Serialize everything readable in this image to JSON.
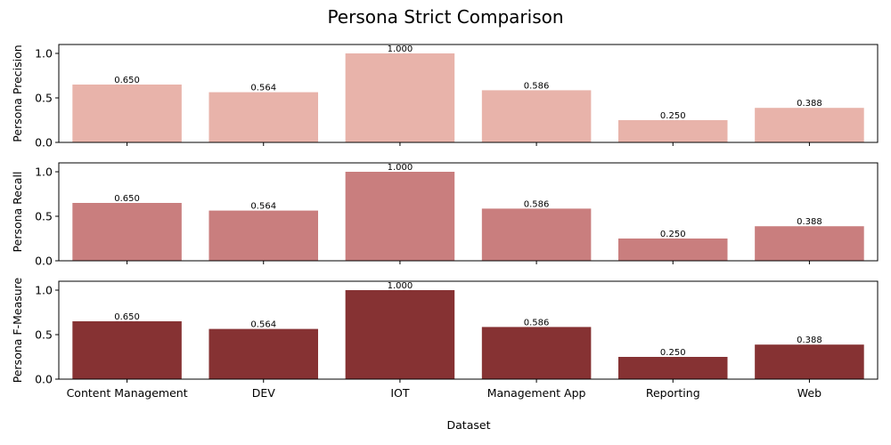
{
  "figure": {
    "title": "Persona Strict Comparison",
    "xlabel": "Dataset"
  },
  "chart_data": [
    {
      "type": "bar",
      "categories": [
        "Content Management",
        "DEV",
        "IOT",
        "Management App",
        "Reporting",
        "Web"
      ],
      "values": [
        0.65,
        0.564,
        1.0,
        0.586,
        0.25,
        0.388
      ],
      "value_labels": [
        "0.650",
        "0.564",
        "1.000",
        "0.586",
        "0.250",
        "0.388"
      ],
      "ylabel": "Persona Precision",
      "ylim": [
        0,
        1.1
      ],
      "yticks": [
        "0.0",
        "0.5",
        "1.0"
      ],
      "color": "#e8b3aa",
      "show_xticklabels": false
    },
    {
      "type": "bar",
      "categories": [
        "Content Management",
        "DEV",
        "IOT",
        "Management App",
        "Reporting",
        "Web"
      ],
      "values": [
        0.65,
        0.564,
        1.0,
        0.586,
        0.25,
        0.388
      ],
      "value_labels": [
        "0.650",
        "0.564",
        "1.000",
        "0.586",
        "0.250",
        "0.388"
      ],
      "ylabel": "Persona Recall",
      "ylim": [
        0,
        1.1
      ],
      "yticks": [
        "0.0",
        "0.5",
        "1.0"
      ],
      "color": "#c97e7e",
      "show_xticklabels": false
    },
    {
      "type": "bar",
      "categories": [
        "Content Management",
        "DEV",
        "IOT",
        "Management App",
        "Reporting",
        "Web"
      ],
      "values": [
        0.65,
        0.564,
        1.0,
        0.586,
        0.25,
        0.388
      ],
      "value_labels": [
        "0.650",
        "0.564",
        "1.000",
        "0.586",
        "0.250",
        "0.388"
      ],
      "ylabel": "Persona F-Measure",
      "ylim": [
        0,
        1.1
      ],
      "yticks": [
        "0.0",
        "0.5",
        "1.0"
      ],
      "color": "#863233",
      "show_xticklabels": true
    }
  ]
}
